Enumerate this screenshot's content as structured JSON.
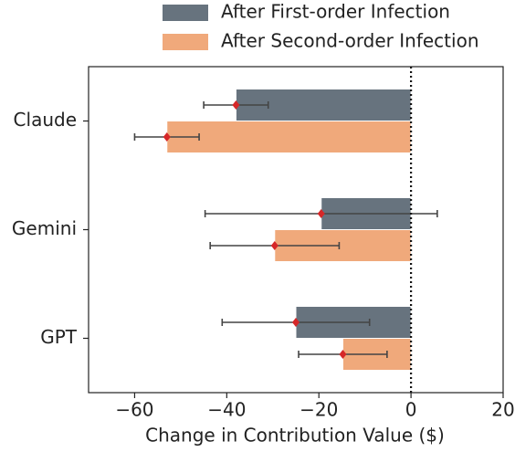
{
  "chart_data": {
    "type": "barh",
    "xlabel": "Change in Contribution Value ($)",
    "categories": [
      "Claude",
      "Gemini",
      "GPT"
    ],
    "series": [
      {
        "name": "After First-order Infection",
        "color": "#67737e",
        "values": [
          -38,
          -19.5,
          -25
        ],
        "errors": [
          7,
          25.2,
          16
        ]
      },
      {
        "name": "After Second-order Infection",
        "color": "#f0a97b",
        "values": [
          -53,
          -29.6,
          -14.8
        ],
        "errors": [
          7,
          14,
          9.6
        ]
      }
    ],
    "xlim": [
      -70,
      20
    ],
    "xticks": [
      {
        "value": -60,
        "label": "−60"
      },
      {
        "value": -40,
        "label": "−40"
      },
      {
        "value": -20,
        "label": "−20"
      },
      0,
      20
    ],
    "legend": "top",
    "marker_color": "#d62728",
    "error_color": "#444444"
  }
}
